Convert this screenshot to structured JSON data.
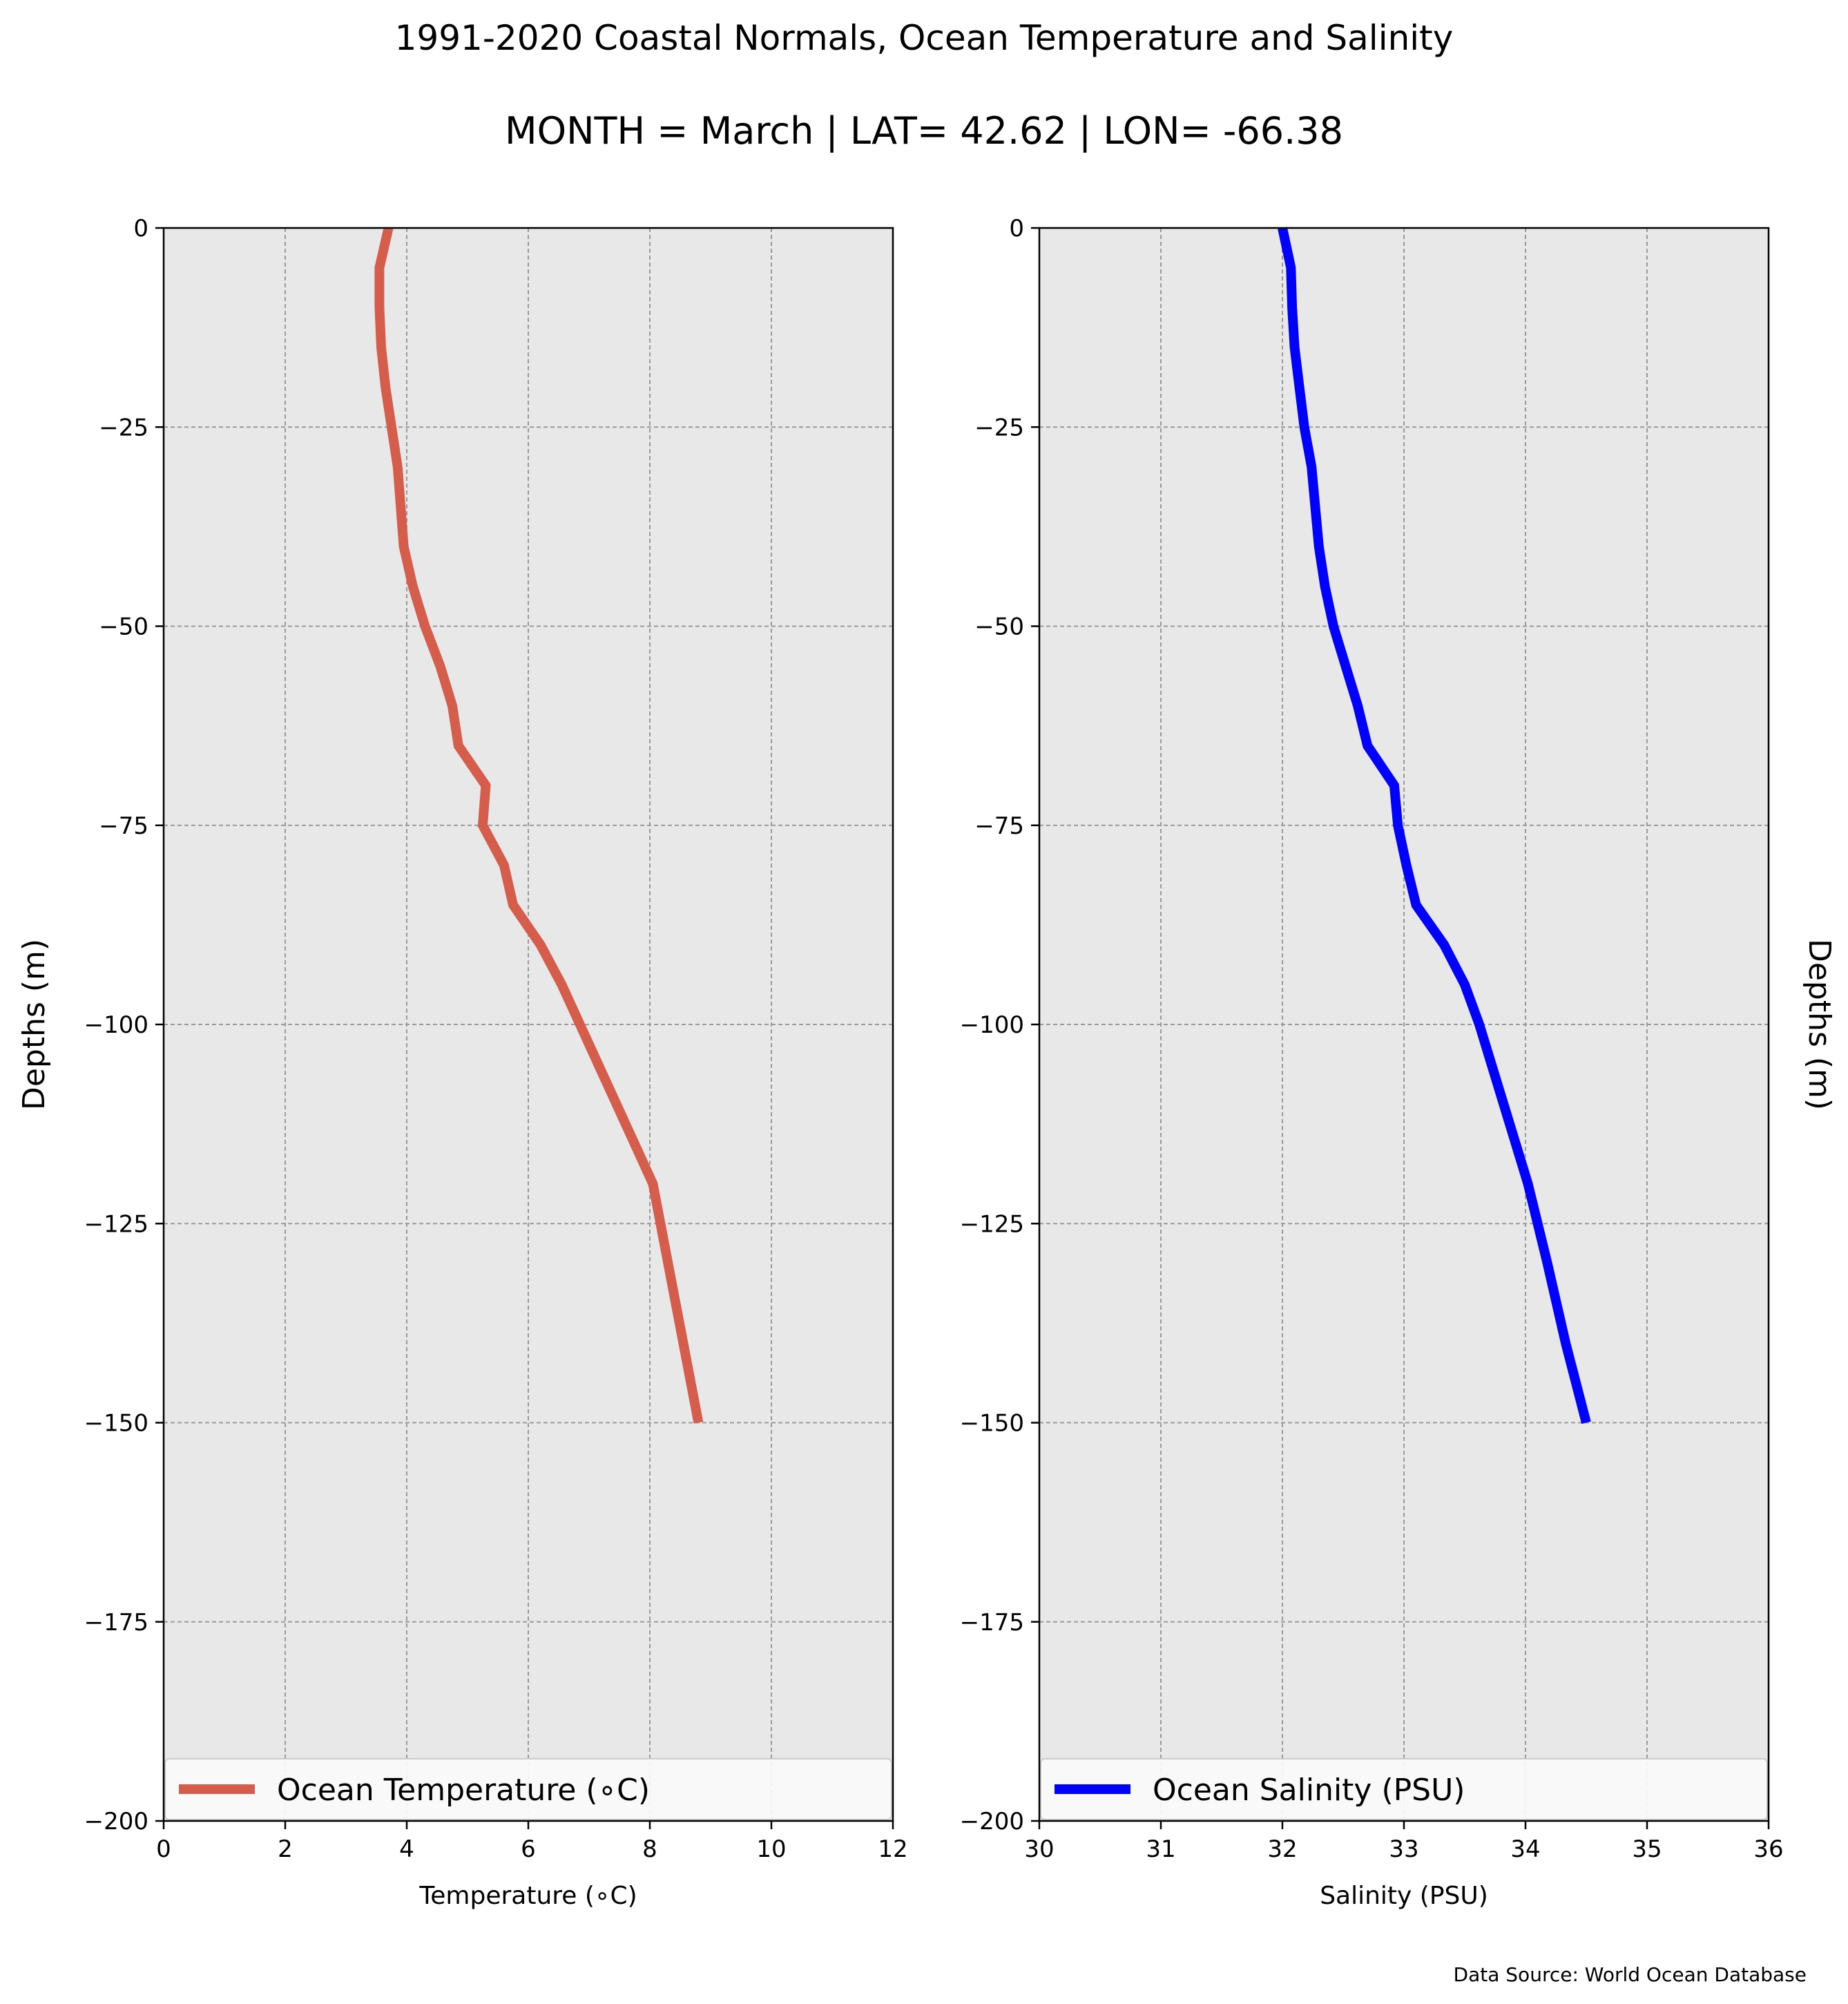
{
  "figure": {
    "title": "1991-2020 Coastal Normals, Ocean Temperature and Salinity",
    "subtitle": "MONTH = March | LAT= 42.62 | LON= -66.38",
    "source_note": "Data Source: World Ocean Database"
  },
  "chart_data": [
    {
      "type": "line",
      "xlabel": "Temperature ($^\\circ$C)",
      "xlabel_display": "Temperature (∘C)",
      "ylabel": "Depths (m)",
      "xlim": [
        0,
        12
      ],
      "ylim": [
        -200,
        0
      ],
      "xticks": [
        0,
        2,
        4,
        6,
        8,
        10,
        12
      ],
      "yticks": [
        0,
        -25,
        -50,
        -75,
        -100,
        -125,
        -150,
        -175,
        -200
      ],
      "grid": true,
      "legend_position": "bottom",
      "series": [
        {
          "name": "Ocean Temperature (∘C)",
          "color": "#d45d4c",
          "x": [
            3.7,
            3.55,
            3.55,
            3.58,
            3.65,
            3.75,
            3.85,
            3.9,
            3.95,
            4.1,
            4.3,
            4.55,
            4.75,
            4.85,
            5.3,
            5.25,
            5.6,
            5.75,
            6.2,
            6.55,
            6.85,
            7.15,
            7.45,
            7.75,
            8.05,
            8.3,
            8.55,
            8.8
          ],
          "y": [
            0,
            -5,
            -10,
            -15,
            -20,
            -25,
            -30,
            -35,
            -40,
            -45,
            -50,
            -55,
            -60,
            -65,
            -70,
            -75,
            -80,
            -85,
            -90,
            -95,
            -100,
            -105,
            -110,
            -115,
            -120,
            -130,
            -140,
            -150
          ]
        }
      ]
    },
    {
      "type": "line",
      "xlabel": "Salinity (PSU)",
      "ylabel": "Depths (m)",
      "xlim": [
        30,
        36
      ],
      "ylim": [
        -200,
        0
      ],
      "xticks": [
        30,
        31,
        32,
        33,
        34,
        35,
        36
      ],
      "yticks": [
        0,
        -25,
        -50,
        -75,
        -100,
        -125,
        -150,
        -175,
        -200
      ],
      "grid": true,
      "legend_position": "bottom",
      "series": [
        {
          "name": "Ocean Salinity (PSU)",
          "color": "#0000ff",
          "x": [
            32.0,
            32.07,
            32.08,
            32.1,
            32.14,
            32.18,
            32.24,
            32.27,
            32.3,
            32.35,
            32.42,
            32.52,
            32.62,
            32.7,
            32.92,
            32.95,
            33.02,
            33.1,
            33.33,
            33.5,
            33.62,
            33.72,
            33.82,
            33.92,
            34.02,
            34.18,
            34.33,
            34.5
          ],
          "y": [
            0,
            -5,
            -10,
            -15,
            -20,
            -25,
            -30,
            -35,
            -40,
            -45,
            -50,
            -55,
            -60,
            -65,
            -70,
            -75,
            -80,
            -85,
            -90,
            -95,
            -100,
            -105,
            -110,
            -115,
            -120,
            -130,
            -140,
            -150
          ]
        }
      ]
    }
  ]
}
